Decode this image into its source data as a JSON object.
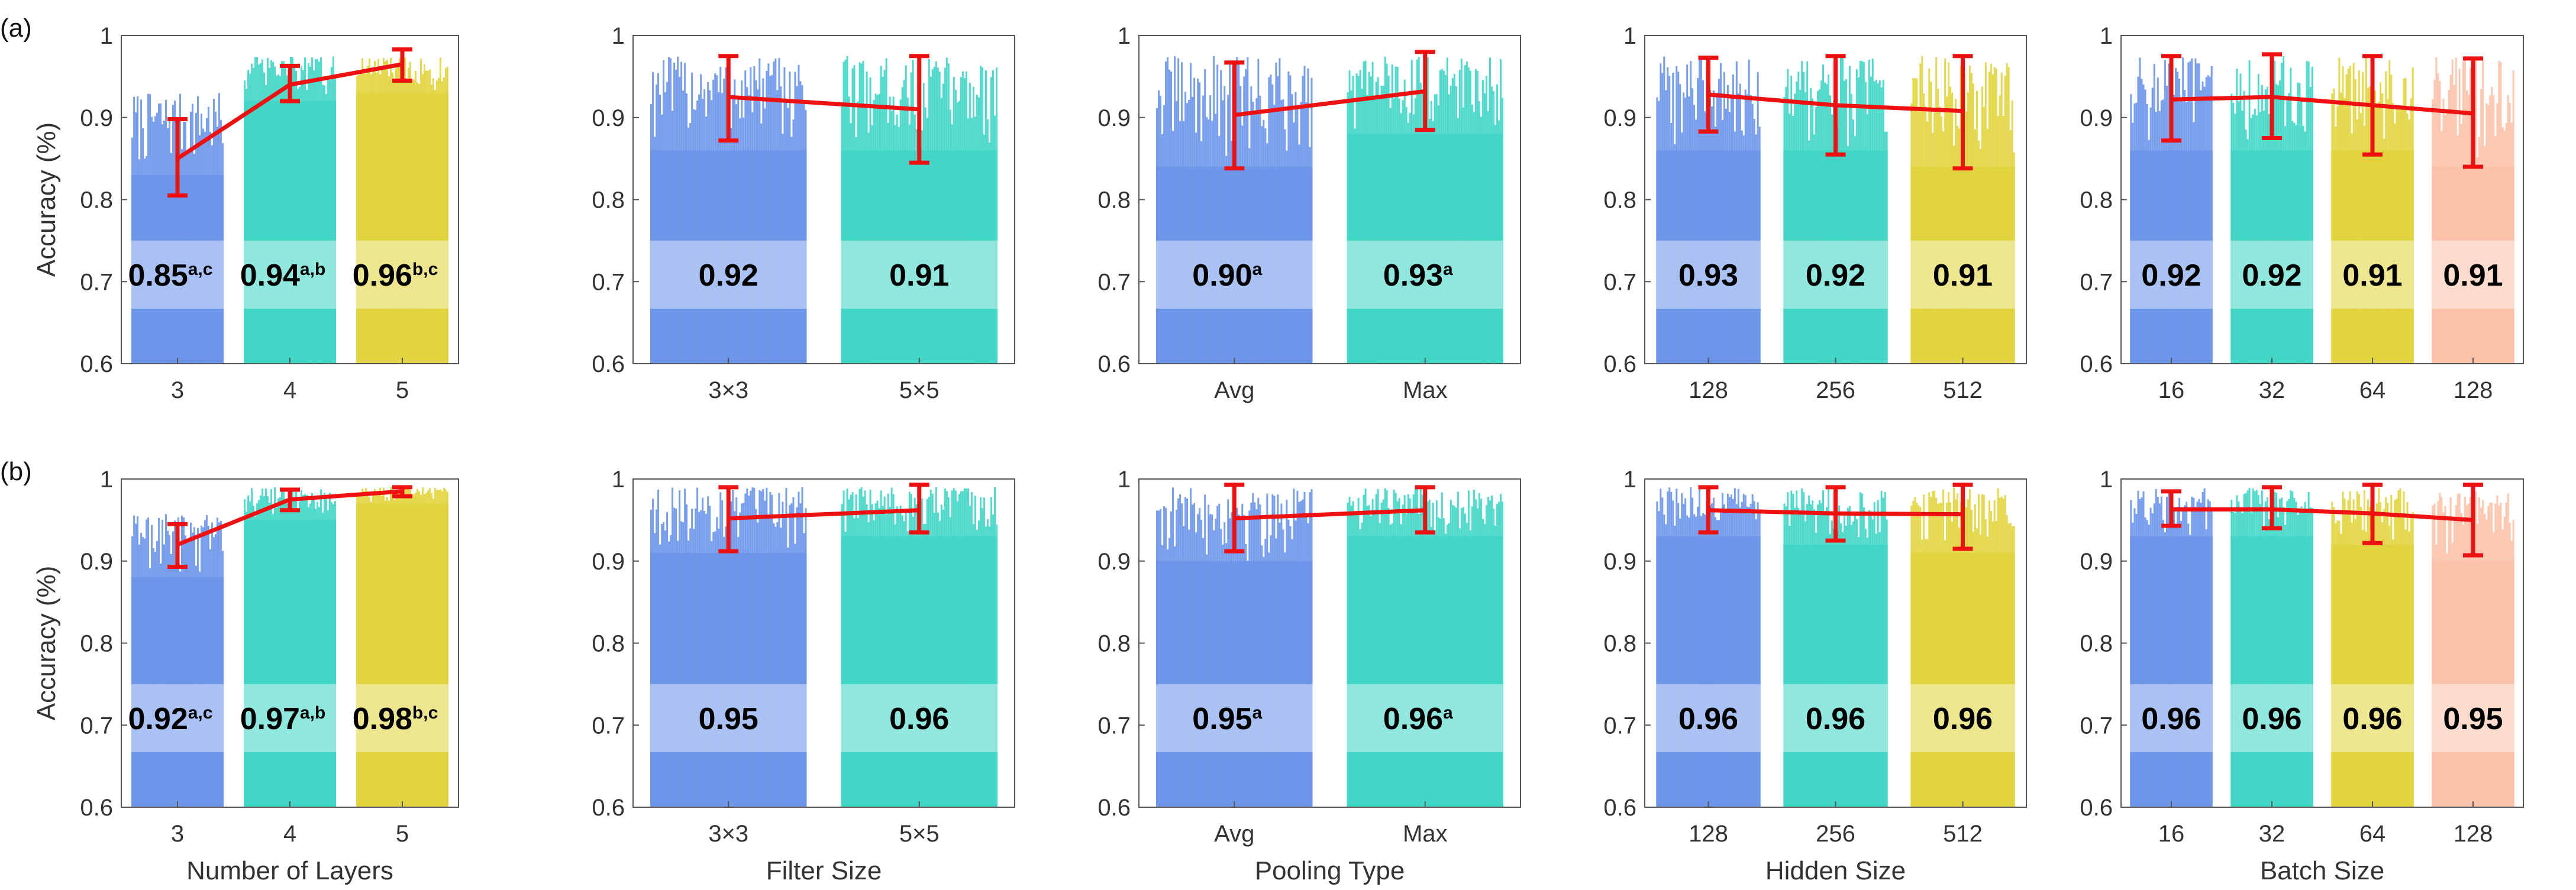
{
  "row_labels": [
    "(a)",
    "(b)"
  ],
  "palette": [
    "#6b95ea",
    "#3fd6c6",
    "#e2d43c",
    "#fbc2a8"
  ],
  "band_color": "#ffffff",
  "errbar_color": "#ee1111",
  "chart_data": [
    {
      "type": "bar",
      "row": 0,
      "col": 0,
      "xlabel": "",
      "ylabel": "Accuracy (%)",
      "ylim": [
        0.6,
        1
      ],
      "yticks": [
        "0.6",
        "0.7",
        "0.8",
        "0.9",
        "1"
      ],
      "categories": [
        "3",
        "4",
        "5"
      ],
      "means": [
        0.85,
        0.94,
        0.965
      ],
      "lower": [
        0.805,
        0.92,
        0.945
      ],
      "upper": [
        0.898,
        0.963,
        0.983
      ],
      "bar_low": [
        0.83,
        0.92,
        0.93
      ],
      "bar_high": [
        0.93,
        0.975,
        0.975
      ],
      "labels": [
        {
          "value": "0.85",
          "sup": "a,c"
        },
        {
          "value": "0.94",
          "sup": "a,b"
        },
        {
          "value": "0.96",
          "sup": "b,c"
        }
      ]
    },
    {
      "type": "bar",
      "row": 0,
      "col": 1,
      "xlabel": "",
      "ylabel": "",
      "ylim": [
        0.6,
        1
      ],
      "yticks": [
        "0.6",
        "0.7",
        "0.8",
        "0.9",
        "1"
      ],
      "categories": [
        "3×3",
        "5×5"
      ],
      "means": [
        0.925,
        0.91
      ],
      "lower": [
        0.872,
        0.845
      ],
      "upper": [
        0.975,
        0.975
      ],
      "bar_low": [
        0.86,
        0.86
      ],
      "bar_high": [
        0.975,
        0.975
      ],
      "labels": [
        {
          "value": "0.92",
          "sup": ""
        },
        {
          "value": "0.91",
          "sup": ""
        }
      ]
    },
    {
      "type": "bar",
      "row": 0,
      "col": 2,
      "xlabel": "",
      "ylabel": "",
      "ylim": [
        0.6,
        1
      ],
      "yticks": [
        "0.6",
        "0.7",
        "0.8",
        "0.9",
        "1"
      ],
      "categories": [
        "Avg",
        "Max"
      ],
      "means": [
        0.903,
        0.932
      ],
      "lower": [
        0.838,
        0.885
      ],
      "upper": [
        0.967,
        0.98
      ],
      "bar_low": [
        0.84,
        0.88
      ],
      "bar_high": [
        0.975,
        0.975
      ],
      "labels": [
        {
          "value": "0.90",
          "sup": "a"
        },
        {
          "value": "0.93",
          "sup": "a"
        }
      ]
    },
    {
      "type": "bar",
      "row": 0,
      "col": 3,
      "xlabel": "",
      "ylabel": "",
      "ylim": [
        0.6,
        1
      ],
      "yticks": [
        "0.6",
        "0.7",
        "0.8",
        "0.9",
        "1"
      ],
      "categories": [
        "128",
        "256",
        "512"
      ],
      "means": [
        0.928,
        0.915,
        0.908
      ],
      "lower": [
        0.883,
        0.855,
        0.838
      ],
      "upper": [
        0.973,
        0.975,
        0.975
      ],
      "bar_low": [
        0.86,
        0.86,
        0.84
      ],
      "bar_high": [
        0.975,
        0.975,
        0.975
      ],
      "labels": [
        {
          "value": "0.93",
          "sup": ""
        },
        {
          "value": "0.92",
          "sup": ""
        },
        {
          "value": "0.91",
          "sup": ""
        }
      ]
    },
    {
      "type": "bar",
      "row": 0,
      "col": 4,
      "xlabel": "",
      "ylabel": "",
      "ylim": [
        0.6,
        1
      ],
      "yticks": [
        "0.6",
        "0.7",
        "0.8",
        "0.9",
        "1"
      ],
      "categories": [
        "16",
        "32",
        "64",
        "128"
      ],
      "means": [
        0.922,
        0.925,
        0.915,
        0.905
      ],
      "lower": [
        0.872,
        0.875,
        0.855,
        0.84
      ],
      "upper": [
        0.975,
        0.977,
        0.975,
        0.972
      ],
      "bar_low": [
        0.86,
        0.86,
        0.86,
        0.84
      ],
      "bar_high": [
        0.975,
        0.975,
        0.975,
        0.975
      ],
      "labels": [
        {
          "value": "0.92",
          "sup": ""
        },
        {
          "value": "0.92",
          "sup": ""
        },
        {
          "value": "0.91",
          "sup": ""
        },
        {
          "value": "0.91",
          "sup": ""
        }
      ]
    },
    {
      "type": "bar",
      "row": 1,
      "col": 0,
      "xlabel": "Number of Layers",
      "ylabel": "Accuracy (%)",
      "ylim": [
        0.6,
        1
      ],
      "yticks": [
        "0.6",
        "0.7",
        "0.8",
        "0.9",
        "1"
      ],
      "categories": [
        "3",
        "4",
        "5"
      ],
      "means": [
        0.92,
        0.975,
        0.985
      ],
      "lower": [
        0.893,
        0.962,
        0.979
      ],
      "upper": [
        0.945,
        0.987,
        0.99
      ],
      "bar_low": [
        0.88,
        0.95,
        0.97
      ],
      "bar_high": [
        0.96,
        0.99,
        0.99
      ],
      "labels": [
        {
          "value": "0.92",
          "sup": "a,c"
        },
        {
          "value": "0.97",
          "sup": "a,b"
        },
        {
          "value": "0.98",
          "sup": "b,c"
        }
      ]
    },
    {
      "type": "bar",
      "row": 1,
      "col": 1,
      "xlabel": "Filter Size",
      "ylabel": "",
      "ylim": [
        0.6,
        1
      ],
      "yticks": [
        "0.6",
        "0.7",
        "0.8",
        "0.9",
        "1"
      ],
      "categories": [
        "3×3",
        "5×5"
      ],
      "means": [
        0.952,
        0.962
      ],
      "lower": [
        0.912,
        0.935
      ],
      "upper": [
        0.99,
        0.993
      ],
      "bar_low": [
        0.91,
        0.93
      ],
      "bar_high": [
        0.99,
        0.99
      ],
      "labels": [
        {
          "value": "0.95",
          "sup": ""
        },
        {
          "value": "0.96",
          "sup": ""
        }
      ]
    },
    {
      "type": "bar",
      "row": 1,
      "col": 2,
      "xlabel": "Pooling Type",
      "ylabel": "",
      "ylim": [
        0.6,
        1
      ],
      "yticks": [
        "0.6",
        "0.7",
        "0.8",
        "0.9",
        "1"
      ],
      "categories": [
        "Avg",
        "Max"
      ],
      "means": [
        0.952,
        0.962
      ],
      "lower": [
        0.912,
        0.935
      ],
      "upper": [
        0.993,
        0.99
      ],
      "bar_low": [
        0.9,
        0.93
      ],
      "bar_high": [
        0.99,
        0.99
      ],
      "labels": [
        {
          "value": "0.95",
          "sup": "a"
        },
        {
          "value": "0.96",
          "sup": "a"
        }
      ]
    },
    {
      "type": "bar",
      "row": 1,
      "col": 3,
      "xlabel": "Hidden Size",
      "ylabel": "",
      "ylim": [
        0.6,
        1
      ],
      "yticks": [
        "0.6",
        "0.7",
        "0.8",
        "0.9",
        "1"
      ],
      "categories": [
        "128",
        "256",
        "512"
      ],
      "means": [
        0.962,
        0.958,
        0.957
      ],
      "lower": [
        0.935,
        0.925,
        0.915
      ],
      "upper": [
        0.99,
        0.99,
        0.993
      ],
      "bar_low": [
        0.93,
        0.92,
        0.91
      ],
      "bar_high": [
        0.99,
        0.99,
        0.99
      ],
      "labels": [
        {
          "value": "0.96",
          "sup": ""
        },
        {
          "value": "0.96",
          "sup": ""
        },
        {
          "value": "0.96",
          "sup": ""
        }
      ]
    },
    {
      "type": "bar",
      "row": 1,
      "col": 4,
      "xlabel": "Batch Size",
      "ylabel": "",
      "ylim": [
        0.6,
        1
      ],
      "yticks": [
        "0.6",
        "0.7",
        "0.8",
        "0.9",
        "1"
      ],
      "categories": [
        "16",
        "32",
        "64",
        "128"
      ],
      "means": [
        0.963,
        0.963,
        0.958,
        0.95
      ],
      "lower": [
        0.943,
        0.94,
        0.922,
        0.907
      ],
      "upper": [
        0.985,
        0.99,
        0.993,
        0.993
      ],
      "bar_low": [
        0.93,
        0.93,
        0.92,
        0.9
      ],
      "bar_high": [
        0.99,
        0.99,
        0.99,
        0.99
      ],
      "labels": [
        {
          "value": "0.96",
          "sup": ""
        },
        {
          "value": "0.96",
          "sup": ""
        },
        {
          "value": "0.96",
          "sup": ""
        },
        {
          "value": "0.95",
          "sup": ""
        }
      ]
    }
  ]
}
